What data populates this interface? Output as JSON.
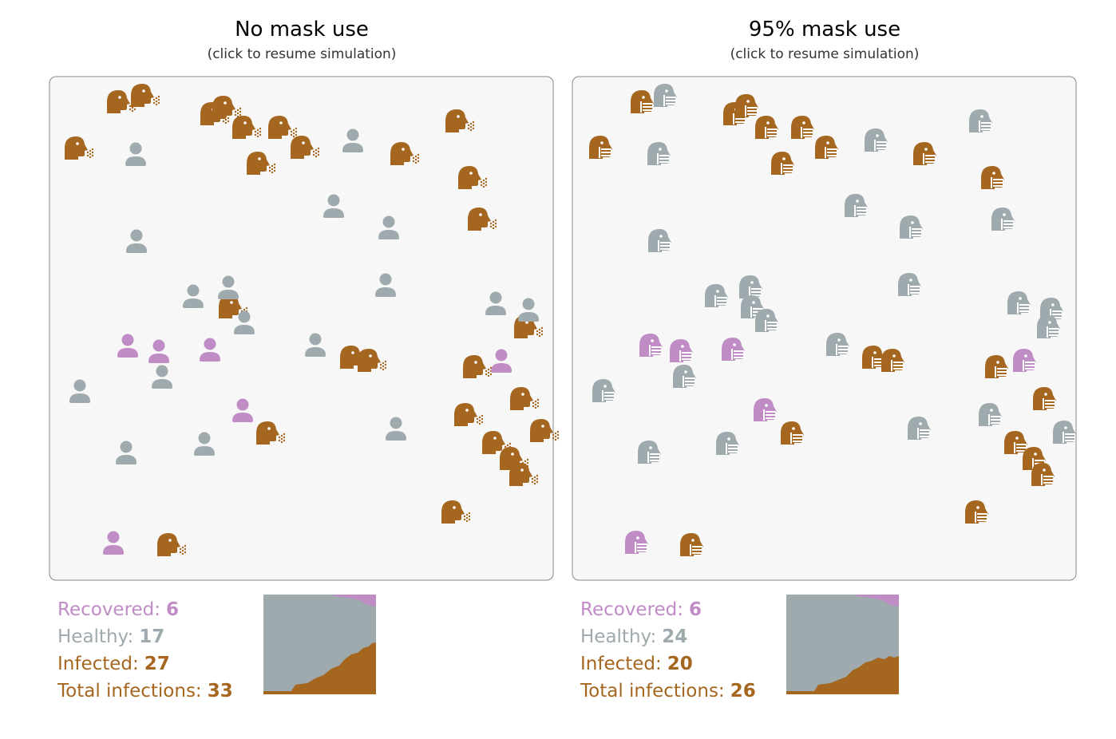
{
  "panels": [
    {
      "title": "No mask use",
      "subtitle": "(click to resume simulation)",
      "stats": [
        {
          "label": "Recovered:",
          "value": 6
        },
        {
          "label": "Healthy:",
          "value": 17
        },
        {
          "label": "Infected:",
          "value": 27
        },
        {
          "label": "Total infections:",
          "value": 33
        }
      ]
    },
    {
      "title": "95% mask use",
      "subtitle": "(click to resume simulation)",
      "stats": [
        {
          "label": "Recovered:",
          "value": 6
        },
        {
          "label": "Healthy:",
          "value": 24
        },
        {
          "label": "Infected:",
          "value": 20
        },
        {
          "label": "Total infections:",
          "value": 26
        }
      ]
    }
  ]
}
